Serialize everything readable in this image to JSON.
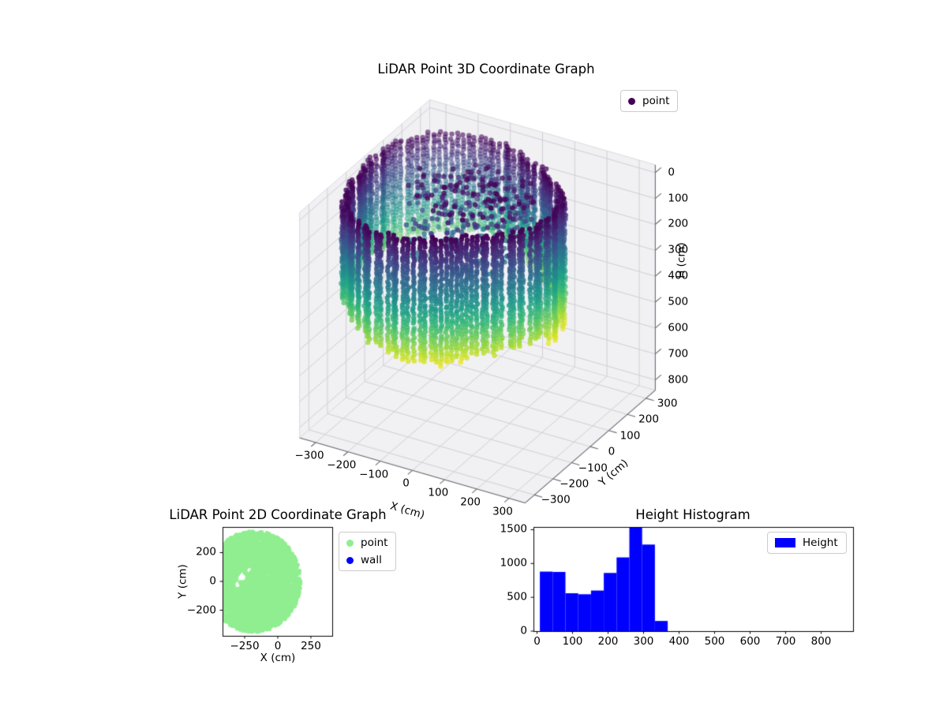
{
  "figure": {
    "type": "matplotlib-figure",
    "background": "#ffffff"
  },
  "chart_data": [
    {
      "id": "lidar-3d",
      "type": "scatter",
      "projection": "3d",
      "title": "LiDAR Point 3D Coordinate Graph",
      "xlabel": "X (cm)",
      "ylabel": "Y (cm)",
      "zlabel": "H (cm)",
      "xticks": [
        -300,
        -200,
        -100,
        0,
        100,
        200,
        300
      ],
      "yticks": [
        -300,
        -200,
        -100,
        0,
        100,
        200,
        300
      ],
      "zticks": [
        0,
        100,
        200,
        300,
        400,
        500,
        600,
        700,
        800
      ],
      "xlim": [
        -350,
        350
      ],
      "ylim": [
        -350,
        350
      ],
      "zlim": [
        -30,
        840
      ],
      "z_axis_inverted": true,
      "grid": true,
      "colormap": "viridis",
      "color_encodes": "height H in cm: 0 = dark purple at top of walls, ~500 = yellow at bottom",
      "legend": {
        "position": "upper right",
        "entries": [
          {
            "label": "point",
            "marker_color": "#440154"
          }
        ]
      },
      "point_cloud": {
        "shape": "ring of vertical LiDAR wall-hit columns plus interior ceiling noise",
        "center_xy_cm": [
          -80,
          0
        ],
        "ring_radius_cm": {
          "mean": 285,
          "variation": 22
        },
        "ring_columns": 120,
        "column_h_top_cm": 5,
        "column_h_bottom_cm": [
          320,
          490
        ],
        "column_point_spacing_cm": 13,
        "interior_noise_points": 330,
        "interior_noise_h_range_cm": [
          5,
          250
        ],
        "color_range_cm": [
          0,
          500
        ]
      }
    },
    {
      "id": "lidar-2d",
      "type": "scatter",
      "title": "LiDAR Point 2D Coordinate Graph",
      "xlabel": "X (cm)",
      "ylabel": "Y (cm)",
      "xticks": [
        -250,
        0,
        250
      ],
      "yticks": [
        -200,
        0,
        200
      ],
      "xlim": [
        -417,
        411
      ],
      "ylim": [
        -378,
        378
      ],
      "legend": {
        "position": "outside upper right",
        "entries": [
          {
            "label": "point",
            "marker_color": "#90ee90"
          },
          {
            "label": "wall",
            "marker_color": "#0000ff"
          }
        ]
      },
      "disc": {
        "center_cm": [
          -180,
          0
        ],
        "radius_cm": 350,
        "n_points": 2800,
        "point_color": "#90ee90",
        "holes": [
          {
            "center_cm": [
              -270,
              30
            ],
            "radius_cm": 36
          },
          {
            "center_cm": [
              -305,
              -25
            ],
            "radius_cm": 28
          },
          {
            "center_cm": [
              -215,
              85
            ],
            "radius_cm": 24
          }
        ]
      }
    },
    {
      "id": "height-histogram",
      "type": "bar",
      "title": "Height Histogram",
      "bar_color": "#0000ff",
      "legend": {
        "position": "upper right",
        "entries": [
          {
            "label": "Height",
            "patch_color": "#0000ff"
          }
        ]
      },
      "bin_edges": [
        8,
        44,
        80,
        116,
        152,
        188,
        224,
        260,
        296,
        332,
        368
      ],
      "counts": [
        880,
        875,
        560,
        545,
        600,
        860,
        1090,
        1530,
        1280,
        150
      ],
      "xticks": [
        0,
        100,
        200,
        300,
        400,
        500,
        600,
        700,
        800
      ],
      "yticks": [
        0,
        500,
        1000,
        1500
      ],
      "xlim": [
        -10,
        890
      ],
      "ylim": [
        0,
        1540
      ]
    }
  ]
}
